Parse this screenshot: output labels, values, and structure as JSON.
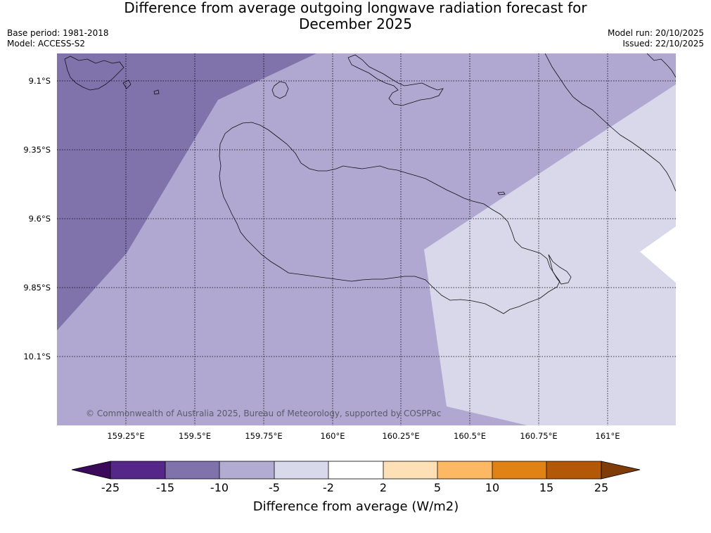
{
  "title_line1": "Difference from average outgoing longwave radiation forecast for",
  "title_line2": "December 2025",
  "base_period": "Base period: 1981-2018",
  "model": "Model: ACCESS-S2",
  "model_run": "Model run: 20/10/2025",
  "issued": "Issued: 22/10/2025",
  "copyright": "© Commonwealth of Australia 2025, Bureau of Meteorology, supported by COSPPac",
  "lat_labels": [
    "9.1°S",
    "9.35°S",
    "9.6°S",
    "9.85°S",
    "10.1°S"
  ],
  "lon_labels": [
    "159.25°E",
    "159.5°E",
    "159.75°E",
    "160°E",
    "160.25°E",
    "160.5°E",
    "160.75°E",
    "161°E"
  ],
  "colorbar": {
    "label": "Difference from average (W/m2)",
    "ticks": [
      "-25",
      "-15",
      "-10",
      "-5",
      "-2",
      "2",
      "5",
      "10",
      "15",
      "25"
    ],
    "colors": [
      "#3b0a5a",
      "#542788",
      "#8073ac",
      "#b2abd2",
      "#d8daeb",
      "#ffffff",
      "#fee0b6",
      "#fdb863",
      "#e08214",
      "#b35806",
      "#7f3b08"
    ]
  },
  "map_colors": {
    "lt_minus10": "#8073ac",
    "minus10_minus5": "#b0a8d0",
    "minus5_minus2": "#d8d8ea",
    "neutral": "#ffffff"
  }
}
